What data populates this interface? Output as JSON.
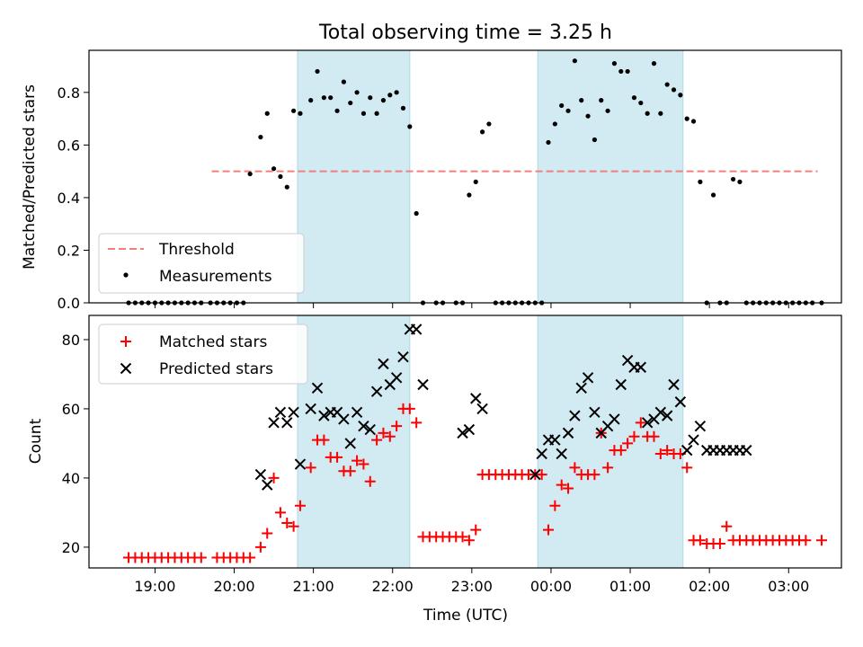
{
  "chart_data": [
    {
      "type": "scatter",
      "title": "Total observing time = 3.25 h",
      "xlabel": "",
      "ylabel": "Matched/Predicted stars",
      "ylim": [
        0,
        0.96
      ],
      "yticks": [
        "0.0",
        "0.2",
        "0.4",
        "0.6",
        "0.8"
      ],
      "shaded_spans": [
        [
          "20:48",
          "22:13"
        ],
        [
          "23:50",
          "01:40"
        ]
      ],
      "threshold": {
        "name": "Threshold",
        "y": 0.5,
        "x_start": "19:43",
        "x_end": "03:22",
        "color": "#f08080"
      },
      "series": [
        {
          "name": "Measurements",
          "color": "#000000",
          "x": [
            "18:40",
            "18:45",
            "18:50",
            "18:55",
            "19:00",
            "19:05",
            "19:10",
            "19:15",
            "19:20",
            "19:25",
            "19:30",
            "19:35",
            "19:42",
            "19:47",
            "19:52",
            "19:57",
            "20:02",
            "20:07",
            "20:12",
            "20:20",
            "20:25",
            "20:30",
            "20:35",
            "20:40",
            "20:45",
            "20:50",
            "20:58",
            "21:03",
            "21:08",
            "21:13",
            "21:18",
            "21:23",
            "21:28",
            "21:33",
            "21:38",
            "21:43",
            "21:48",
            "21:53",
            "21:58",
            "22:03",
            "22:08",
            "22:13",
            "22:18",
            "22:23",
            "22:33",
            "22:38",
            "22:48",
            "22:53",
            "22:58",
            "23:03",
            "23:08",
            "23:13",
            "23:18",
            "23:23",
            "23:28",
            "23:33",
            "23:38",
            "23:43",
            "23:48",
            "23:53",
            "23:58",
            "24:03",
            "24:08",
            "24:13",
            "24:18",
            "24:23",
            "24:28",
            "24:33",
            "24:38",
            "24:43",
            "24:48",
            "24:53",
            "24:58",
            "25:03",
            "25:08",
            "25:13",
            "25:18",
            "25:23",
            "25:28",
            "25:33",
            "25:38",
            "25:43",
            "25:48",
            "25:53",
            "25:58",
            "26:03",
            "26:08",
            "26:13",
            "26:18",
            "26:23",
            "26:28",
            "26:33",
            "26:38",
            "26:43",
            "26:48",
            "26:53",
            "26:58",
            "27:03",
            "27:08",
            "27:13",
            "27:18",
            "27:25"
          ],
          "y": [
            0,
            0,
            0,
            0,
            0,
            0,
            0,
            0,
            0,
            0,
            0,
            0,
            0,
            0,
            0,
            0,
            0,
            0,
            0.49,
            0.63,
            0.72,
            0.51,
            0.48,
            0.44,
            0.73,
            0.72,
            0.77,
            0.88,
            0.78,
            0.78,
            0.73,
            0.84,
            0.76,
            0.8,
            0.72,
            0.78,
            0.72,
            0.77,
            0.79,
            0.8,
            0.74,
            0.67,
            0.34,
            0,
            0,
            0,
            0,
            0,
            0.41,
            0.46,
            0.65,
            0.68,
            0,
            0,
            0,
            0,
            0,
            0,
            0,
            0,
            0.61,
            0.68,
            0.75,
            0.73,
            0.92,
            0.77,
            0.71,
            0.62,
            0.77,
            0.73,
            0.91,
            0.88,
            0.88,
            0.78,
            0.76,
            0.72,
            0.91,
            0.72,
            0.83,
            0.81,
            0.79,
            0.7,
            0.69,
            0.46,
            0,
            0.41,
            0,
            0,
            0.47,
            0.46,
            0,
            0,
            0,
            0,
            0,
            0,
            0,
            0,
            0,
            0,
            0,
            0
          ]
        }
      ]
    },
    {
      "type": "scatter",
      "title": "",
      "xlabel": "Time (UTC)",
      "ylabel": "Count",
      "ylim": [
        14,
        87
      ],
      "yticks": [
        "20",
        "40",
        "60",
        "80"
      ],
      "xticks": [
        "19:00",
        "20:00",
        "21:00",
        "22:00",
        "23:00",
        "00:00",
        "01:00",
        "02:00",
        "03:00"
      ],
      "shaded_spans": [
        [
          "20:48",
          "22:13"
        ],
        [
          "23:50",
          "01:40"
        ]
      ],
      "series": [
        {
          "name": "Matched stars",
          "marker": "+",
          "color": "#ff0000",
          "x": [
            "18:40",
            "18:45",
            "18:50",
            "18:55",
            "19:00",
            "19:05",
            "19:10",
            "19:15",
            "19:20",
            "19:25",
            "19:30",
            "19:35",
            "19:47",
            "19:52",
            "19:57",
            "20:02",
            "20:07",
            "20:12",
            "20:20",
            "20:25",
            "20:30",
            "20:35",
            "20:40",
            "20:45",
            "20:50",
            "20:58",
            "21:03",
            "21:08",
            "21:13",
            "21:18",
            "21:23",
            "21:28",
            "21:33",
            "21:38",
            "21:43",
            "21:48",
            "21:53",
            "21:58",
            "22:03",
            "22:08",
            "22:13",
            "22:18",
            "22:23",
            "22:28",
            "22:33",
            "22:38",
            "22:43",
            "22:48",
            "22:53",
            "22:58",
            "23:03",
            "23:08",
            "23:13",
            "23:18",
            "23:23",
            "23:28",
            "23:33",
            "23:38",
            "23:43",
            "23:48",
            "23:53",
            "23:58",
            "24:03",
            "24:08",
            "24:13",
            "24:18",
            "24:23",
            "24:28",
            "24:33",
            "24:38",
            "24:43",
            "24:48",
            "24:53",
            "24:58",
            "25:03",
            "25:08",
            "25:13",
            "25:18",
            "25:23",
            "25:28",
            "25:33",
            "25:38",
            "25:43",
            "25:48",
            "25:53",
            "25:58",
            "26:03",
            "26:08",
            "26:13",
            "26:18",
            "26:23",
            "26:28",
            "26:33",
            "26:38",
            "26:43",
            "26:48",
            "26:53",
            "26:58",
            "27:03",
            "27:08",
            "27:13",
            "27:25"
          ],
          "y": [
            17,
            17,
            17,
            17,
            17,
            17,
            17,
            17,
            17,
            17,
            17,
            17,
            17,
            17,
            17,
            17,
            17,
            17,
            20,
            24,
            40,
            30,
            27,
            26,
            32,
            43,
            51,
            51,
            46,
            46,
            42,
            42,
            45,
            44,
            39,
            51,
            53,
            52,
            55,
            60,
            60,
            56,
            23,
            23,
            23,
            23,
            23,
            23,
            23,
            22,
            25,
            41,
            41,
            41,
            41,
            41,
            41,
            41,
            41,
            41,
            41,
            25,
            32,
            38,
            37,
            43,
            41,
            41,
            41,
            53,
            43,
            48,
            48,
            50,
            52,
            56,
            52,
            52,
            47,
            48,
            47,
            47,
            43,
            22,
            22,
            21,
            21,
            21,
            26,
            22,
            22,
            22,
            22,
            22,
            22,
            22,
            22,
            22,
            22,
            22,
            22,
            22
          ]
        },
        {
          "name": "Predicted stars",
          "marker": "x",
          "color": "#000000",
          "x": [
            "20:20",
            "20:25",
            "20:30",
            "20:35",
            "20:40",
            "20:45",
            "20:50",
            "20:58",
            "21:03",
            "21:08",
            "21:13",
            "21:18",
            "21:23",
            "21:28",
            "21:33",
            "21:38",
            "21:43",
            "21:48",
            "21:53",
            "21:58",
            "22:03",
            "22:08",
            "22:13",
            "22:18",
            "22:23",
            "22:53",
            "22:58",
            "23:03",
            "23:08",
            "23:48",
            "23:53",
            "23:58",
            "24:03",
            "24:08",
            "24:13",
            "24:18",
            "24:23",
            "24:28",
            "24:33",
            "24:38",
            "24:43",
            "24:48",
            "24:53",
            "24:58",
            "25:03",
            "25:08",
            "25:13",
            "25:18",
            "25:23",
            "25:28",
            "25:33",
            "25:38",
            "25:43",
            "25:48",
            "25:53",
            "25:58",
            "26:03",
            "26:08",
            "26:13",
            "26:18",
            "26:23",
            "26:28"
          ],
          "y": [
            41,
            38,
            56,
            59,
            56,
            59,
            44,
            60,
            66,
            58,
            59,
            59,
            57,
            50,
            59,
            55,
            54,
            65,
            73,
            67,
            69,
            75,
            83,
            83,
            67,
            53,
            54,
            63,
            60,
            41,
            47,
            51,
            51,
            47,
            53,
            58,
            66,
            69,
            59,
            53,
            55,
            57,
            67,
            74,
            72,
            72,
            56,
            57,
            59,
            58,
            67,
            62,
            48,
            51,
            55,
            48,
            48,
            48,
            48,
            48,
            48,
            48
          ]
        }
      ],
      "legend": {
        "placement": "top-left",
        "entries": [
          "Matched stars",
          "Predicted stars"
        ]
      }
    }
  ],
  "legend_top": {
    "placement": "bottom-left",
    "entries": [
      "Threshold",
      "Measurements"
    ]
  },
  "colors": {
    "shade": "#add8e6",
    "threshold": "#f08080",
    "matched": "#ff0000",
    "predicted": "#000000"
  }
}
